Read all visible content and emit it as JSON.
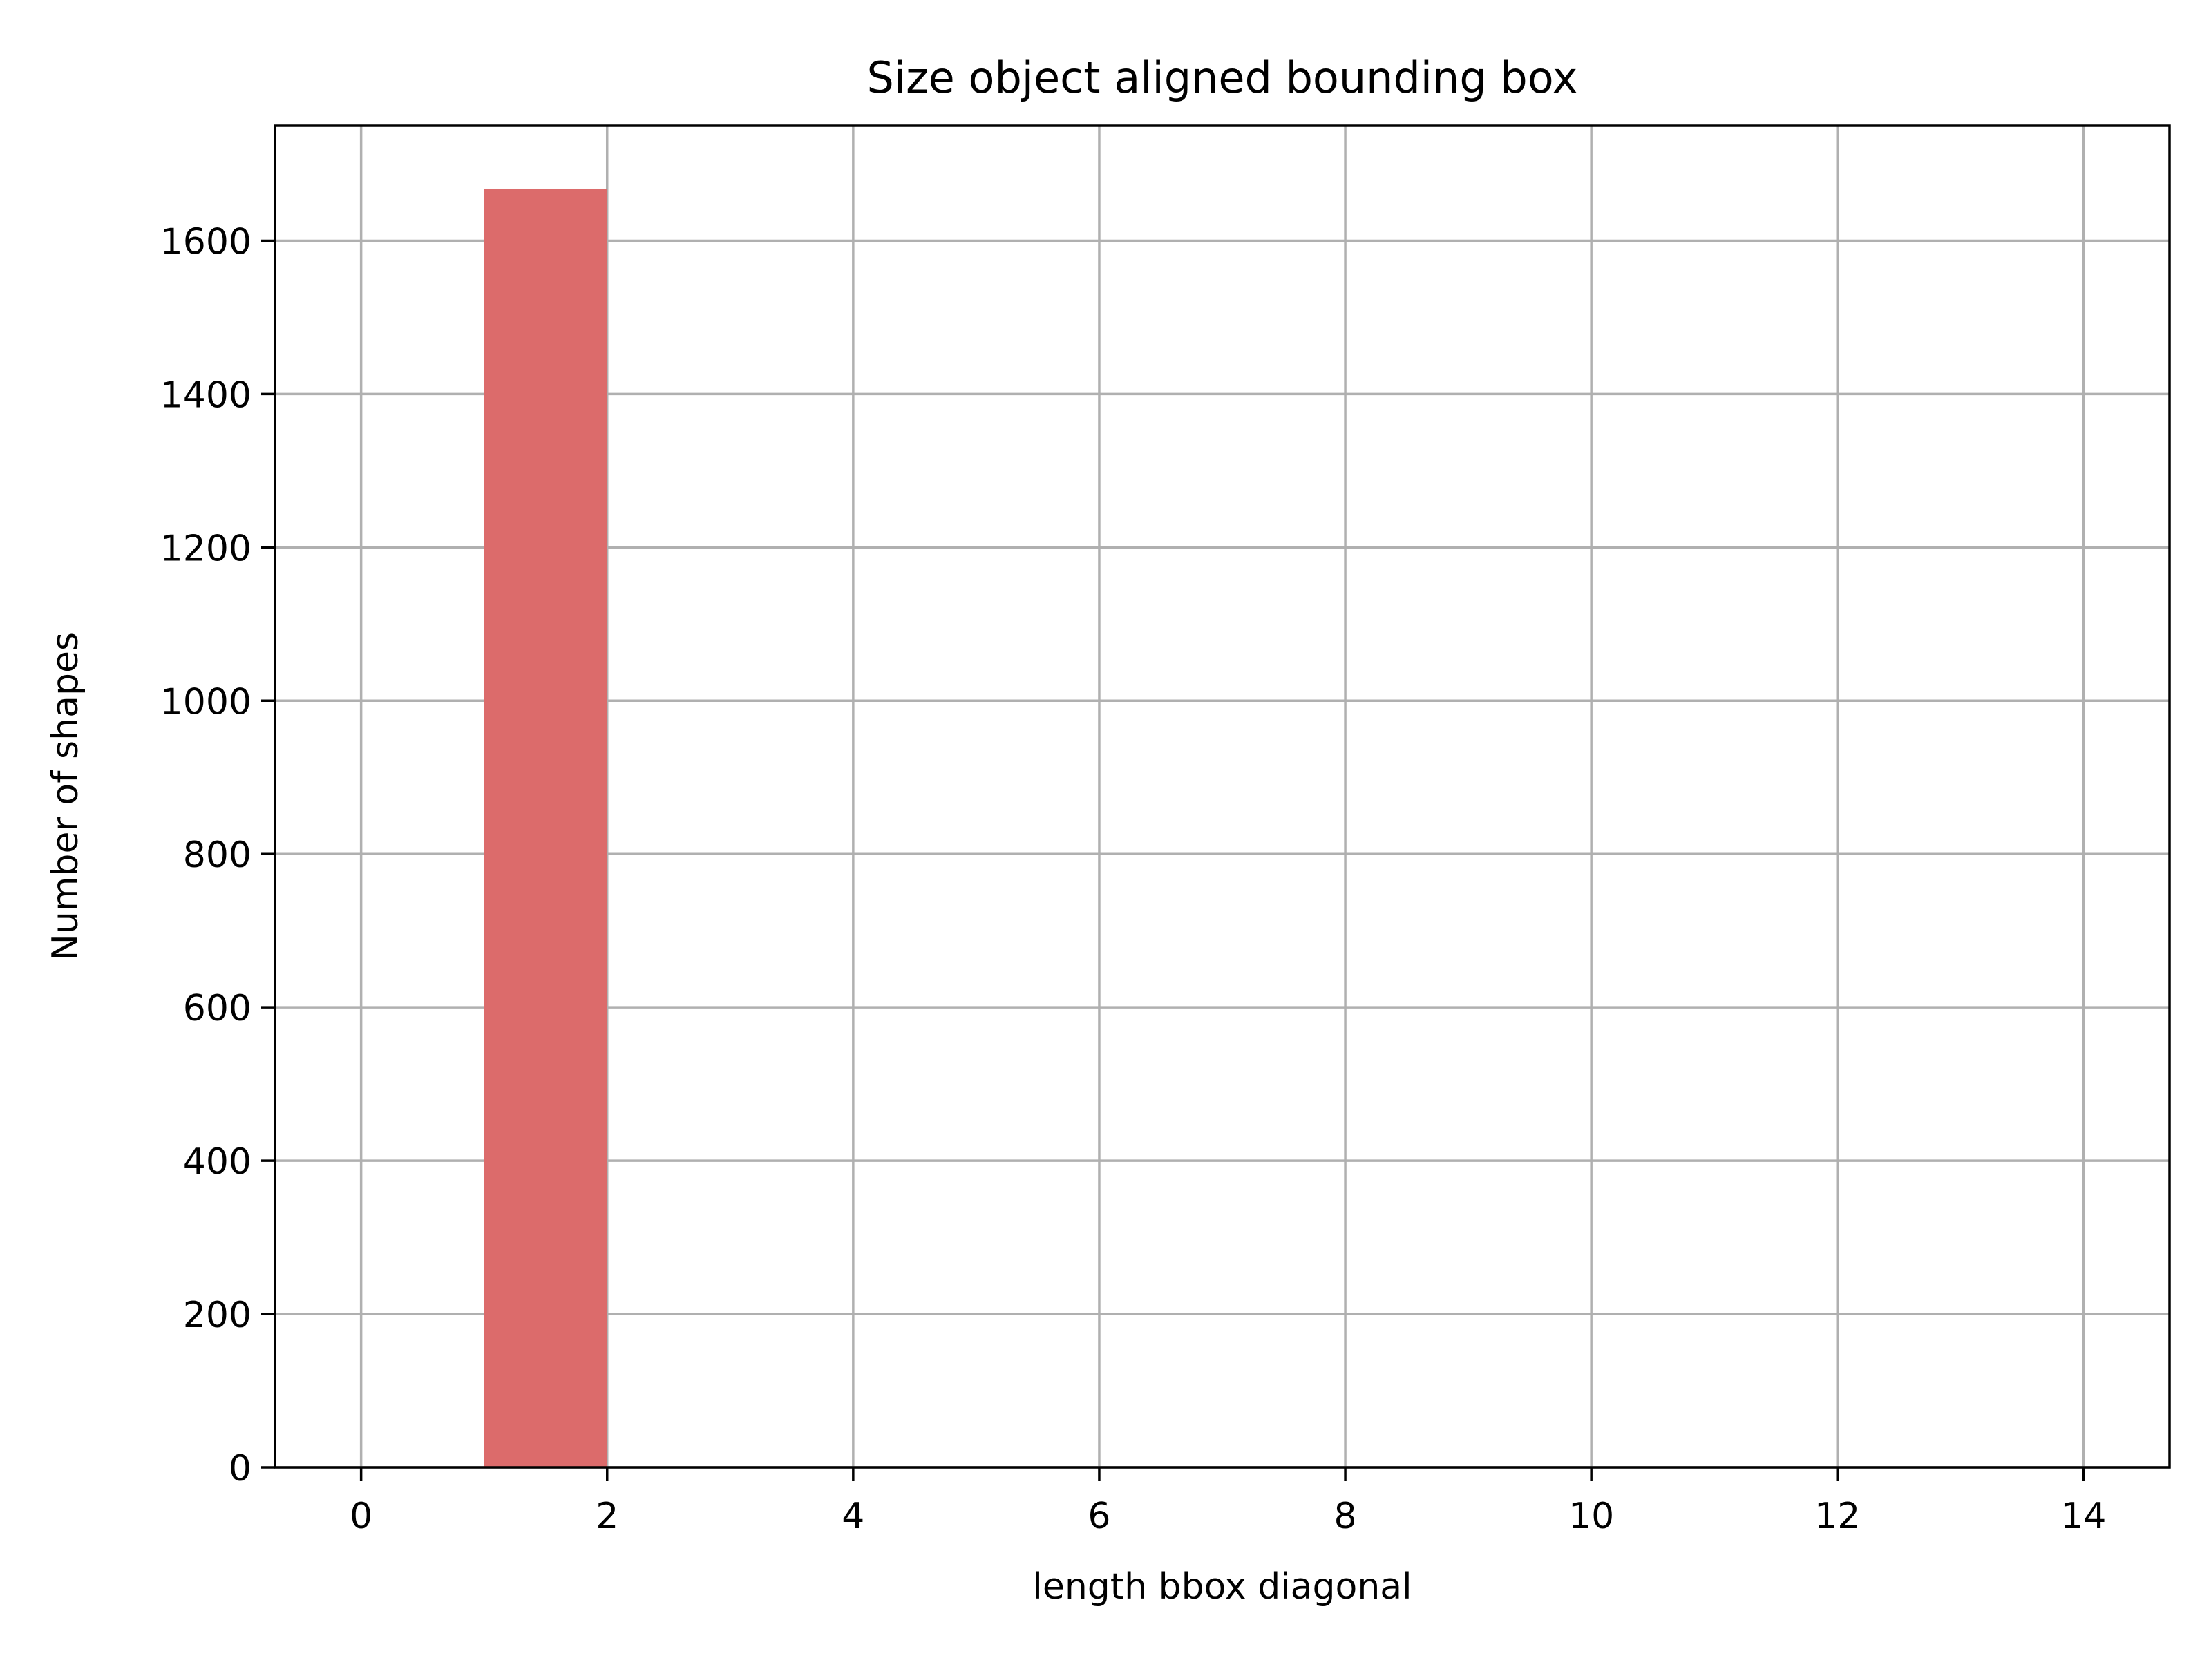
{
  "chart_data": {
    "type": "bar",
    "title": "Size object aligned bounding box",
    "xlabel": "length bbox diagonal",
    "ylabel": "Number of shapes",
    "xlim": [
      -0.7,
      14.7
    ],
    "ylim": [
      0,
      1750
    ],
    "x_ticks": [
      0,
      2,
      4,
      6,
      8,
      10,
      12,
      14
    ],
    "y_ticks": [
      0,
      200,
      400,
      600,
      800,
      1000,
      1200,
      1400,
      1600
    ],
    "grid": true,
    "bars": [
      {
        "x_start": 1,
        "x_end": 2,
        "value": 1668
      }
    ],
    "bar_color": "#dc6b6b",
    "grid_color": "#b0b0b0"
  }
}
